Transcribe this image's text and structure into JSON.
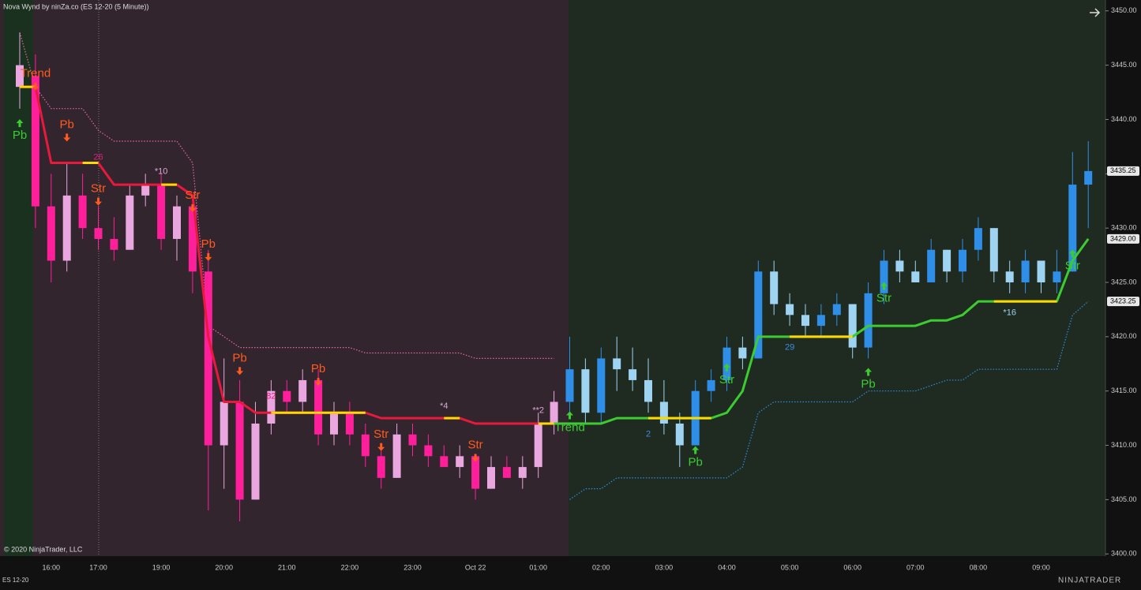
{
  "chart_data": {
    "type": "candlestick",
    "title": "Nova Wynd by ninZa.co (ES 12-20 (5 Minute))",
    "copyright": "© 2020 NinjaTrader, LLC",
    "instrument": "ES 12-20",
    "brand": "NINJATRADER",
    "categories": [
      null,
      null,
      "16:00",
      null,
      null,
      "17:00",
      null,
      null,
      null,
      "19:00",
      null,
      null,
      null,
      "20:00",
      null,
      null,
      null,
      "21:00",
      null,
      null,
      null,
      "22:00",
      null,
      null,
      null,
      "23:00",
      null,
      null,
      null,
      "Oct 22",
      null,
      null,
      null,
      "01:00",
      null,
      null,
      null,
      "02:00",
      null,
      null,
      null,
      "03:00",
      null,
      null,
      null,
      "04:00",
      null,
      null,
      null,
      "05:00",
      null,
      null,
      null,
      "06:00",
      null,
      null,
      null,
      "07:00",
      null,
      null,
      null,
      "08:00",
      null,
      null,
      null,
      "09:00",
      null,
      null,
      null
    ],
    "open": [
      3443,
      3444,
      3432,
      3427,
      3433,
      3430,
      3429,
      3428,
      3433,
      3434,
      3429,
      3432,
      3426,
      3410,
      3414,
      3405,
      3412,
      3415,
      3414,
      3416,
      3411,
      3413,
      3411,
      3409,
      3407,
      3411,
      3410,
      3409,
      3408,
      3409,
      3406,
      3408,
      3407,
      3408,
      3412,
      3414,
      3417,
      3413,
      3418,
      3417,
      3416,
      3414,
      3412,
      3410,
      3415,
      3416,
      3419,
      3418,
      3426,
      3423,
      3422,
      3421,
      3422,
      3423,
      3419,
      3424,
      3427,
      3426,
      3425,
      3428,
      3426,
      3428,
      3430,
      3426,
      3425,
      3427,
      3425,
      3426,
      3434
    ],
    "high": [
      3448,
      3446,
      3435,
      3436,
      3435,
      3432,
      3431,
      3434,
      3435,
      3435,
      3433,
      3433,
      3428,
      3418,
      3416,
      3414,
      3416,
      3416,
      3417,
      3417,
      3414,
      3414,
      3412,
      3410,
      3412,
      3412,
      3411,
      3410,
      3410,
      3409,
      3409,
      3409,
      3409,
      3413,
      3415,
      3420,
      3418,
      3419,
      3420,
      3419,
      3418,
      3416,
      3413,
      3416,
      3417,
      3420,
      3420,
      3427,
      3427,
      3424,
      3423,
      3423,
      3424,
      3423,
      3425,
      3428,
      3428,
      3427,
      3429,
      3428,
      3429,
      3431,
      3430,
      3427,
      3428,
      3427,
      3428,
      3437,
      3438
    ],
    "low": [
      3441,
      3430,
      3425,
      3426,
      3429,
      3428,
      3427,
      3428,
      3432,
      3428,
      3427,
      3424,
      3404,
      3406,
      3403,
      3405,
      3411,
      3413,
      3413,
      3410,
      3410,
      3410,
      3408,
      3406,
      3407,
      3409,
      3408,
      3408,
      3407,
      3405,
      3406,
      3407,
      3406,
      3407,
      3411,
      3413,
      3412,
      3412,
      3415,
      3415,
      3413,
      3411,
      3408,
      3410,
      3414,
      3415,
      3417,
      3418,
      3422,
      3421,
      3420,
      3420,
      3421,
      3418,
      3418,
      3423,
      3425,
      3425,
      3425,
      3425,
      3425,
      3427,
      3425,
      3424,
      3424,
      3424,
      3424,
      3426,
      3430
    ],
    "close": [
      3445,
      3432,
      3427,
      3433,
      3430,
      3429,
      3428,
      3433,
      3434,
      3429,
      3432,
      3426,
      3410,
      3414,
      3405,
      3412,
      3415,
      3414,
      3416,
      3411,
      3413,
      3411,
      3409,
      3407,
      3411,
      3410,
      3409,
      3408,
      3409,
      3406,
      3408,
      3407,
      3408,
      3412,
      3414,
      3417,
      3413,
      3418,
      3417,
      3416,
      3414,
      3412,
      3410,
      3415,
      3416,
      3419,
      3418,
      3426,
      3423,
      3422,
      3421,
      3422,
      3423,
      3419,
      3424,
      3427,
      3426,
      3425,
      3428,
      3426,
      3428,
      3430,
      3426,
      3425,
      3427,
      3425,
      3426,
      3434,
      3435.25
    ],
    "candle_colors": {
      "down_rising": "#e9a6df",
      "down_falling": "#ff1f9a",
      "up_rising": "#2f8fe8",
      "up_falling": "#9fd3f2"
    },
    "series": [
      {
        "color": "#e8193c",
        "style": "solid",
        "values": [
          3443,
          3443,
          3436,
          3436,
          3436,
          3436,
          3434,
          3434,
          3434,
          3434,
          3434,
          3433,
          3420,
          3414,
          3414,
          3413,
          3413,
          3413,
          3413,
          3413,
          3413,
          3413,
          3413,
          3412.5,
          3412.5,
          3412.5,
          3412.5,
          3412.5,
          3412.5,
          3412,
          3412,
          3412,
          3412,
          3412,
          3412,
          null,
          null,
          null,
          null,
          null,
          null,
          null,
          null,
          null,
          null,
          null,
          null,
          null,
          null,
          null,
          null,
          null,
          null,
          null,
          null,
          null,
          null,
          null,
          null,
          null,
          null,
          null,
          null,
          null,
          null,
          null,
          null,
          null,
          null
        ]
      },
      {
        "color": "#3ccc32",
        "style": "solid",
        "values": [
          null,
          null,
          null,
          null,
          null,
          null,
          null,
          null,
          null,
          null,
          null,
          null,
          null,
          null,
          null,
          null,
          null,
          null,
          null,
          null,
          null,
          null,
          null,
          null,
          null,
          null,
          null,
          null,
          null,
          null,
          null,
          null,
          null,
          null,
          3412,
          3412,
          3412,
          3412,
          3412.5,
          3412.5,
          3412.5,
          3412.5,
          3412.5,
          3412.5,
          3412.5,
          3413,
          3415,
          3420,
          3420,
          3420,
          3420,
          3420,
          3420,
          3420,
          3421,
          3421,
          3421,
          3421,
          3421.5,
          3421.5,
          3422,
          3423.25,
          3423.25,
          3423.25,
          3423.25,
          3423.25,
          3423.25,
          3427,
          3429
        ]
      },
      {
        "color": "#ffd800",
        "style": "solid",
        "values": [
          3443,
          3443,
          null,
          null,
          3436,
          3436,
          null,
          null,
          null,
          3434,
          3434,
          null,
          null,
          null,
          null,
          null,
          3413,
          3413,
          3413,
          3413,
          3413,
          3413,
          3413,
          null,
          null,
          null,
          null,
          3412.5,
          3412.5,
          null,
          null,
          null,
          null,
          3412,
          3412,
          null,
          null,
          null,
          null,
          null,
          3412.5,
          3412.5,
          3412.5,
          3412.5,
          3412.5,
          null,
          null,
          null,
          null,
          3420,
          3420,
          3420,
          3420,
          3420,
          null,
          null,
          null,
          null,
          null,
          null,
          null,
          null,
          3423.25,
          3423.25,
          3423.25,
          3423.25,
          3423.25,
          null,
          null
        ]
      },
      {
        "color": "#e06aa6",
        "style": "dotted",
        "values": [
          3448,
          3443,
          3441,
          3441,
          3441,
          3439,
          3438,
          3438,
          3438,
          3438,
          3438,
          3436,
          3421,
          3420,
          3419,
          3419,
          3419,
          3419,
          3419,
          3419,
          3419,
          3419,
          3418.5,
          3418.5,
          3418.5,
          3418.5,
          3418.5,
          3418.5,
          3418.5,
          3418,
          3418,
          3418,
          3418,
          3418,
          3418,
          null,
          null,
          null,
          null,
          null,
          null,
          null,
          null,
          null,
          null,
          null,
          null,
          null,
          null,
          null,
          null,
          null,
          null,
          null,
          null,
          null,
          null,
          null,
          null,
          null,
          null,
          null,
          null,
          null,
          null,
          null,
          null,
          null,
          null
        ]
      },
      {
        "color": "#2e8de0",
        "style": "dotted",
        "values": [
          null,
          null,
          null,
          null,
          null,
          null,
          null,
          null,
          null,
          null,
          null,
          null,
          null,
          null,
          null,
          null,
          null,
          null,
          null,
          null,
          null,
          null,
          null,
          null,
          null,
          null,
          null,
          null,
          null,
          null,
          null,
          null,
          null,
          null,
          null,
          3405,
          3406,
          3406,
          3407,
          3407,
          3407,
          3407,
          3407,
          3407,
          3407,
          3407,
          3408,
          3413,
          3414,
          3414,
          3414,
          3414,
          3414,
          3414,
          3415,
          3415,
          3415,
          3415,
          3415.5,
          3416,
          3416,
          3417,
          3417,
          3417,
          3417,
          3417,
          3417,
          3422,
          3423.25
        ]
      }
    ],
    "annotations": [
      {
        "text": "Trend",
        "index": 1,
        "y": 3444.2,
        "color": "#ff5a1f",
        "arrow": "down"
      },
      {
        "text": "Pb",
        "index": 0,
        "y": 3438.5,
        "color": "#3ccc32",
        "arrow": "up"
      },
      {
        "text": "Pb",
        "index": 3,
        "y": 3439.5,
        "color": "#ff5a1f",
        "arrow": "down"
      },
      {
        "text": "26",
        "index": 5,
        "y": 3436.5,
        "color": "#e0207a",
        "arrow": "none"
      },
      {
        "text": "*10",
        "index": 9,
        "y": 3435.2,
        "color": "#d8a8d8",
        "arrow": "none"
      },
      {
        "text": "Str",
        "index": 5,
        "y": 3433.6,
        "color": "#ff5a1f",
        "arrow": "down"
      },
      {
        "text": "Str",
        "index": 11,
        "y": 3433,
        "color": "#ff5a1f",
        "arrow": "down"
      },
      {
        "text": "Pb",
        "index": 12,
        "y": 3428.5,
        "color": "#ff5a1f",
        "arrow": "down"
      },
      {
        "text": "Pb",
        "index": 14,
        "y": 3418,
        "color": "#ff5a1f",
        "arrow": "down"
      },
      {
        "text": "82",
        "index": 16,
        "y": 3414.5,
        "color": "#e0207a",
        "arrow": "none"
      },
      {
        "text": "Pb",
        "index": 19,
        "y": 3417,
        "color": "#ff5a1f",
        "arrow": "down"
      },
      {
        "text": "*4",
        "index": 27,
        "y": 3413.6,
        "color": "#d8a8d8",
        "arrow": "none"
      },
      {
        "text": "Str",
        "index": 23,
        "y": 3411,
        "color": "#ff5a1f",
        "arrow": "down"
      },
      {
        "text": "Str",
        "index": 29,
        "y": 3410,
        "color": "#ff5a1f",
        "arrow": "down"
      },
      {
        "text": "**2",
        "index": 33,
        "y": 3413.2,
        "color": "#d8a8d8",
        "arrow": "none"
      },
      {
        "text": "Trend",
        "index": 35,
        "y": 3411.6,
        "color": "#3ccc32",
        "arrow": "up"
      },
      {
        "text": "2",
        "index": 40,
        "y": 3411,
        "color": "#3a8fe0",
        "arrow": "none"
      },
      {
        "text": "Pb",
        "index": 43,
        "y": 3408.4,
        "color": "#3ccc32",
        "arrow": "up"
      },
      {
        "text": "Str",
        "index": 45,
        "y": 3416,
        "color": "#3ccc32",
        "arrow": "up"
      },
      {
        "text": "29",
        "index": 49,
        "y": 3419,
        "color": "#3a8fe0",
        "arrow": "none"
      },
      {
        "text": "Str",
        "index": 55,
        "y": 3423.5,
        "color": "#3ccc32",
        "arrow": "up"
      },
      {
        "text": "Pb",
        "index": 54,
        "y": 3415.6,
        "color": "#3ccc32",
        "arrow": "up"
      },
      {
        "text": "*16",
        "index": 63,
        "y": 3422.2,
        "color": "#9fd3f2",
        "arrow": "none"
      },
      {
        "text": "Str",
        "index": 67,
        "y": 3426.5,
        "color": "#3ccc32",
        "arrow": "up"
      }
    ],
    "ylim": [
      3399.8,
      3451
    ],
    "yticks": [
      {
        "value": 3400,
        "label": "3400.00"
      },
      {
        "value": 3405,
        "label": "3405.00"
      },
      {
        "value": 3410,
        "label": "3410.00"
      },
      {
        "value": 3415,
        "label": "3415.00"
      },
      {
        "value": 3420,
        "label": "3420.00"
      },
      {
        "value": 3425,
        "label": "3425.00"
      },
      {
        "value": 3430,
        "label": "3430.00"
      },
      {
        "value": 3435,
        "label": "3435.00"
      },
      {
        "value": 3440,
        "label": "3440.00"
      },
      {
        "value": 3445,
        "label": "3445.00"
      },
      {
        "value": 3450,
        "label": "3450.00"
      }
    ],
    "price_markers": [
      {
        "value": 3435.25,
        "label": "3435.25"
      },
      {
        "value": 3429,
        "label": "3429.00"
      },
      {
        "value": 3423.25,
        "label": "3423.25"
      }
    ]
  }
}
